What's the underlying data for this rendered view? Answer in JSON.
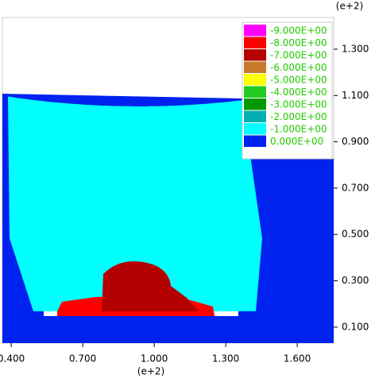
{
  "chart_data": {
    "type": "contour",
    "x_label": "(e+2)",
    "y_label": "(e+2)",
    "xlim": [
      0.363,
      1.753
    ],
    "ylim": [
      0.031,
      1.437
    ],
    "xticks": [
      {
        "value": 0.4,
        "label": "0.400"
      },
      {
        "value": 0.7,
        "label": "0.700"
      },
      {
        "value": 1.0,
        "label": "1.000"
      },
      {
        "value": 1.3,
        "label": "1.300"
      },
      {
        "value": 1.6,
        "label": "1.600"
      }
    ],
    "yticks": [
      {
        "value": 0.1,
        "label": "0.100"
      },
      {
        "value": 0.3,
        "label": "0.300"
      },
      {
        "value": 0.5,
        "label": "0.500"
      },
      {
        "value": 0.7,
        "label": "0.700"
      },
      {
        "value": 0.9,
        "label": "0.900"
      },
      {
        "value": 1.1,
        "label": "1.100"
      },
      {
        "value": 1.3,
        "label": "1.300"
      }
    ],
    "levels": [
      {
        "value": -9,
        "label": "-9.000E+00",
        "color": "#ff00ff"
      },
      {
        "value": -8,
        "label": "-8.000E+00",
        "color": "#ff0000"
      },
      {
        "value": -7,
        "label": "-7.000E+00",
        "color": "#b40000"
      },
      {
        "value": -6,
        "label": "-6.000E+00",
        "color": "#c8782a"
      },
      {
        "value": -5,
        "label": "-5.000E+00",
        "color": "#ffff00"
      },
      {
        "value": -4,
        "label": "-4.000E+00",
        "color": "#22cc22"
      },
      {
        "value": -3,
        "label": "-3.000E+00",
        "color": "#009a00"
      },
      {
        "value": -2,
        "label": "-2.000E+00",
        "color": "#00b0b0"
      },
      {
        "value": -1,
        "label": "-1.000E+00",
        "color": "#00ffff"
      },
      {
        "value": 0,
        "label": "0.000E+00",
        "color": "#0022ee"
      }
    ]
  }
}
